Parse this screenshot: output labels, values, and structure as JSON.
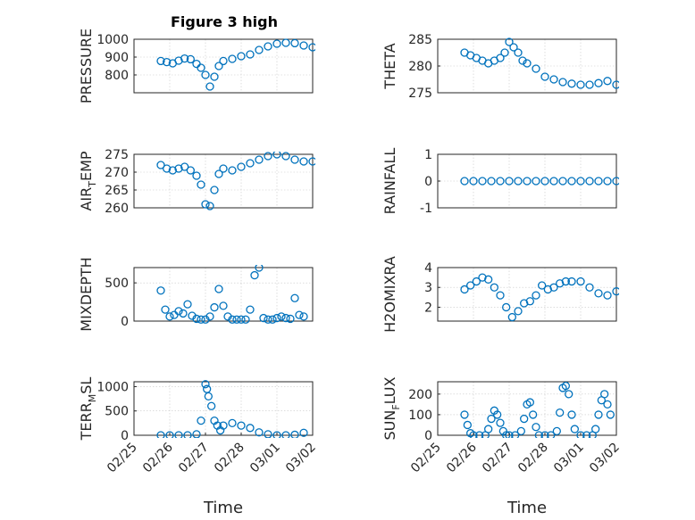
{
  "chart_data": [
    {
      "type": "scatter",
      "title": "Figure 3 high",
      "ylabel": "PRESSURE",
      "ylim": [
        700,
        1000
      ],
      "yticks": [
        "800",
        "900",
        "1000"
      ],
      "ytick_values": [
        800,
        900,
        1000
      ],
      "xlim": [
        "02/25",
        "03/02"
      ],
      "xticks": [],
      "xlabel": "",
      "grid": true,
      "color": "#0072bd",
      "x": [
        "02/25 18:00",
        "02/25 22:00",
        "02/26 02:00",
        "02/26 06:00",
        "02/26 10:00",
        "02/26 14:00",
        "02/26 18:00",
        "02/26 21:00",
        "02/27 00:00",
        "02/27 03:00",
        "02/27 06:00",
        "02/27 09:00",
        "02/27 12:00",
        "02/27 18:00",
        "02/28 00:00",
        "02/28 06:00",
        "02/28 12:00",
        "02/28 18:00",
        "03/01 00:00",
        "03/01 06:00",
        "03/01 12:00",
        "03/01 18:00",
        "03/02 00:00"
      ],
      "y": [
        878,
        872,
        865,
        880,
        892,
        888,
        862,
        840,
        800,
        735,
        790,
        850,
        878,
        890,
        905,
        915,
        940,
        960,
        975,
        980,
        978,
        965,
        955
      ]
    },
    {
      "type": "scatter",
      "title": "",
      "ylabel": "THETA",
      "ylim": [
        275,
        285
      ],
      "yticks": [
        "275",
        "280",
        "285"
      ],
      "ytick_values": [
        275,
        280,
        285
      ],
      "xlim": [
        "02/25",
        "03/02"
      ],
      "xticks": [],
      "xlabel": "",
      "grid": true,
      "color": "#0072bd",
      "x": [
        "02/25 18:00",
        "02/25 22:00",
        "02/26 02:00",
        "02/26 06:00",
        "02/26 10:00",
        "02/26 14:00",
        "02/26 18:00",
        "02/26 21:00",
        "02/27 00:00",
        "02/27 03:00",
        "02/27 06:00",
        "02/27 09:00",
        "02/27 12:00",
        "02/27 18:00",
        "02/28 00:00",
        "02/28 06:00",
        "02/28 12:00",
        "02/28 18:00",
        "03/01 00:00",
        "03/01 06:00",
        "03/01 12:00",
        "03/01 18:00",
        "03/02 00:00"
      ],
      "y": [
        282.5,
        282,
        281.5,
        281,
        280.5,
        281,
        281.5,
        282.5,
        284.5,
        283.5,
        282.5,
        281,
        280.5,
        279.5,
        278,
        277.5,
        277,
        276.7,
        276.5,
        276.5,
        276.8,
        277.2,
        276.5
      ]
    },
    {
      "type": "scatter",
      "title": "",
      "ylabel": "AIR_TEMP",
      "ylabel_main": "AIR",
      "ylabel_sub": "T",
      "ylabel_rest": "EMP",
      "ylim": [
        260,
        275
      ],
      "yticks": [
        "260",
        "265",
        "270",
        "275"
      ],
      "ytick_values": [
        260,
        265,
        270,
        275
      ],
      "xlim": [
        "02/25",
        "03/02"
      ],
      "xticks": [],
      "xlabel": "",
      "grid": true,
      "color": "#0072bd",
      "x": [
        "02/25 18:00",
        "02/25 22:00",
        "02/26 02:00",
        "02/26 06:00",
        "02/26 10:00",
        "02/26 14:00",
        "02/26 18:00",
        "02/26 21:00",
        "02/27 00:00",
        "02/27 03:00",
        "02/27 06:00",
        "02/27 09:00",
        "02/27 12:00",
        "02/27 18:00",
        "02/28 00:00",
        "02/28 06:00",
        "02/28 12:00",
        "02/28 18:00",
        "03/01 00:00",
        "03/01 06:00",
        "03/01 12:00",
        "03/01 18:00",
        "03/02 00:00"
      ],
      "y": [
        272,
        271,
        270.5,
        271,
        271.5,
        270.5,
        269,
        266.5,
        261,
        260.5,
        265,
        269.5,
        271,
        270.5,
        271.5,
        272.5,
        273.5,
        274.5,
        275,
        274.5,
        273.5,
        273,
        273
      ]
    },
    {
      "type": "scatter",
      "title": "",
      "ylabel": "RAINFALL",
      "ylim": [
        -1,
        1
      ],
      "yticks": [
        "-1",
        "0",
        "1"
      ],
      "ytick_values": [
        -1,
        0,
        1
      ],
      "xlim": [
        "02/25",
        "03/02"
      ],
      "xticks": [],
      "xlabel": "",
      "grid": true,
      "color": "#0072bd",
      "x": [
        "02/25 18:00",
        "02/26 00:00",
        "02/26 06:00",
        "02/26 12:00",
        "02/26 18:00",
        "02/27 00:00",
        "02/27 06:00",
        "02/27 12:00",
        "02/27 18:00",
        "02/28 00:00",
        "02/28 06:00",
        "02/28 12:00",
        "02/28 18:00",
        "03/01 00:00",
        "03/01 06:00",
        "03/01 12:00",
        "03/01 18:00",
        "03/02 00:00"
      ],
      "y": [
        0,
        0,
        0,
        0,
        0,
        0,
        0,
        0,
        0,
        0,
        0,
        0,
        0,
        0,
        0,
        0,
        0,
        0
      ]
    },
    {
      "type": "scatter",
      "title": "",
      "ylabel": "MIXDEPTH",
      "ylim": [
        0,
        700
      ],
      "yticks": [
        "0",
        "500"
      ],
      "ytick_values": [
        0,
        500
      ],
      "xlim": [
        "02/25",
        "03/02"
      ],
      "xticks": [],
      "xlabel": "",
      "grid": true,
      "color": "#0072bd",
      "x": [
        "02/25 18:00",
        "02/25 21:00",
        "02/26 00:00",
        "02/26 03:00",
        "02/26 06:00",
        "02/26 09:00",
        "02/26 12:00",
        "02/26 15:00",
        "02/26 18:00",
        "02/26 21:00",
        "02/27 00:00",
        "02/27 03:00",
        "02/27 06:00",
        "02/27 09:00",
        "02/27 12:00",
        "02/27 15:00",
        "02/27 18:00",
        "02/27 21:00",
        "02/28 00:00",
        "02/28 03:00",
        "02/28 06:00",
        "02/28 09:00",
        "02/28 12:00",
        "02/28 15:00",
        "02/28 18:00",
        "02/28 21:00",
        "03/01 00:00",
        "03/01 03:00",
        "03/01 06:00",
        "03/01 09:00",
        "03/01 12:00",
        "03/01 15:00",
        "03/01 18:00"
      ],
      "y": [
        400,
        150,
        60,
        80,
        130,
        100,
        220,
        70,
        30,
        20,
        20,
        60,
        180,
        420,
        200,
        60,
        20,
        20,
        20,
        20,
        150,
        600,
        700,
        40,
        20,
        20,
        40,
        60,
        40,
        30,
        300,
        80,
        60
      ]
    },
    {
      "type": "scatter",
      "title": "",
      "ylabel": "H2OMIXRA",
      "ylim": [
        1.3,
        4
      ],
      "yticks": [
        "2",
        "3",
        "4"
      ],
      "ytick_values": [
        2,
        3,
        4
      ],
      "xlim": [
        "02/25",
        "03/02"
      ],
      "xticks": [],
      "xlabel": "",
      "grid": true,
      "color": "#0072bd",
      "x": [
        "02/25 18:00",
        "02/25 22:00",
        "02/26 02:00",
        "02/26 06:00",
        "02/26 10:00",
        "02/26 14:00",
        "02/26 18:00",
        "02/26 22:00",
        "02/27 02:00",
        "02/27 06:00",
        "02/27 10:00",
        "02/27 14:00",
        "02/27 18:00",
        "02/27 22:00",
        "02/28 02:00",
        "02/28 06:00",
        "02/28 10:00",
        "02/28 14:00",
        "02/28 18:00",
        "03/01 00:00",
        "03/01 06:00",
        "03/01 12:00",
        "03/01 18:00",
        "03/02 00:00"
      ],
      "y": [
        2.9,
        3.1,
        3.3,
        3.5,
        3.4,
        3.0,
        2.6,
        2.0,
        1.5,
        1.8,
        2.2,
        2.3,
        2.6,
        3.1,
        2.9,
        3.0,
        3.2,
        3.3,
        3.3,
        3.3,
        3.0,
        2.7,
        2.6,
        2.8
      ]
    },
    {
      "type": "scatter",
      "title": "",
      "ylabel": "TERR_MSL",
      "ylabel_main": "TERR",
      "ylabel_sub": "M",
      "ylabel_rest": "SL",
      "ylim": [
        0,
        1100
      ],
      "yticks": [
        "0",
        "500",
        "1000"
      ],
      "ytick_values": [
        0,
        500,
        1000
      ],
      "xlim": [
        "02/25",
        "03/02"
      ],
      "xticks": [
        "02/25",
        "02/26",
        "02/27",
        "02/28",
        "03/01",
        "03/02"
      ],
      "xlabel": "Time",
      "grid": true,
      "color": "#0072bd",
      "x": [
        "02/25 18:00",
        "02/26 00:00",
        "02/26 06:00",
        "02/26 12:00",
        "02/26 18:00",
        "02/26 21:00",
        "02/27 00:00",
        "02/27 01:00",
        "02/27 02:00",
        "02/27 04:00",
        "02/27 06:00",
        "02/27 08:00",
        "02/27 10:00",
        "02/27 12:00",
        "02/27 18:00",
        "02/28 00:00",
        "02/28 06:00",
        "02/28 12:00",
        "02/28 18:00",
        "03/01 00:00",
        "03/01 06:00",
        "03/01 12:00",
        "03/01 18:00"
      ],
      "y": [
        0,
        0,
        0,
        0,
        20,
        300,
        1050,
        950,
        800,
        600,
        300,
        200,
        100,
        200,
        250,
        200,
        150,
        60,
        20,
        0,
        0,
        10,
        50
      ]
    },
    {
      "type": "scatter",
      "title": "",
      "ylabel": "SUN_FLUX",
      "ylabel_main": "SUN",
      "ylabel_sub": "F",
      "ylabel_rest": "LUX",
      "ylim": [
        0,
        260
      ],
      "yticks": [
        "0",
        "100",
        "200"
      ],
      "ytick_values": [
        0,
        100,
        200
      ],
      "xlim": [
        "02/25",
        "03/02"
      ],
      "xticks": [
        "02/25",
        "02/26",
        "02/27",
        "02/28",
        "03/01",
        "03/02"
      ],
      "xlabel": "Time",
      "grid": true,
      "color": "#0072bd",
      "x": [
        "02/25 18:00",
        "02/25 20:00",
        "02/25 22:00",
        "02/26 00:00",
        "02/26 04:00",
        "02/26 08:00",
        "02/26 10:00",
        "02/26 12:00",
        "02/26 14:00",
        "02/26 16:00",
        "02/26 18:00",
        "02/26 20:00",
        "02/26 22:00",
        "02/27 00:00",
        "02/27 04:00",
        "02/27 08:00",
        "02/27 10:00",
        "02/27 12:00",
        "02/27 14:00",
        "02/27 16:00",
        "02/27 18:00",
        "02/27 20:00",
        "02/28 00:00",
        "02/28 04:00",
        "02/28 08:00",
        "02/28 10:00",
        "02/28 12:00",
        "02/28 14:00",
        "02/28 16:00",
        "02/28 18:00",
        "02/28 20:00",
        "03/01 00:00",
        "03/01 04:00",
        "03/01 08:00",
        "03/01 10:00",
        "03/01 12:00",
        "03/01 14:00",
        "03/01 16:00",
        "03/01 18:00",
        "03/01 20:00"
      ],
      "y": [
        100,
        50,
        10,
        0,
        0,
        0,
        30,
        80,
        120,
        100,
        60,
        20,
        0,
        0,
        0,
        20,
        80,
        150,
        160,
        100,
        40,
        0,
        0,
        0,
        20,
        110,
        230,
        240,
        200,
        100,
        30,
        0,
        0,
        0,
        30,
        100,
        170,
        200,
        150,
        100
      ]
    }
  ]
}
